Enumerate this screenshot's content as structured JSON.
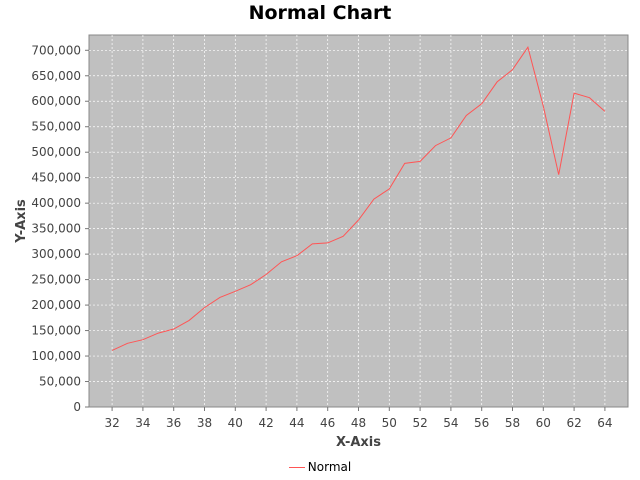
{
  "chart_data": {
    "type": "line",
    "title": "Normal Chart",
    "xlabel": "X-Axis",
    "ylabel": "Y-Axis",
    "xlim": [
      30.5,
      65.5
    ],
    "ylim": [
      0,
      730000
    ],
    "x_ticks": [
      32,
      34,
      36,
      38,
      40,
      42,
      44,
      46,
      48,
      50,
      52,
      54,
      56,
      58,
      60,
      62,
      64
    ],
    "y_ticks": [
      0,
      50000,
      100000,
      150000,
      200000,
      250000,
      300000,
      350000,
      400000,
      450000,
      500000,
      550000,
      600000,
      650000,
      700000
    ],
    "y_tick_labels": [
      "0",
      "50,000",
      "100,000",
      "150,000",
      "200,000",
      "250,000",
      "300,000",
      "350,000",
      "400,000",
      "450,000",
      "500,000",
      "550,000",
      "600,000",
      "650,000",
      "700,000"
    ],
    "grid": true,
    "legend_position": "bottom",
    "plot_background": "#c0c0c0",
    "series": [
      {
        "name": "Normal",
        "color": "#ff5555",
        "x": [
          32,
          33,
          34,
          35,
          36,
          37,
          38,
          39,
          40,
          41,
          42,
          43,
          44,
          45,
          46,
          47,
          48,
          49,
          50,
          51,
          52,
          53,
          54,
          55,
          56,
          57,
          58,
          59,
          60,
          61,
          62,
          63,
          64
        ],
        "y": [
          111000,
          125000,
          132000,
          145000,
          153000,
          170000,
          195000,
          215000,
          227000,
          240000,
          260000,
          285000,
          297000,
          320000,
          322000,
          335000,
          367000,
          408000,
          428000,
          478000,
          482000,
          513000,
          528000,
          572000,
          595000,
          638000,
          662000,
          706000,
          590000,
          456000,
          616000,
          607000,
          580000
        ]
      }
    ]
  }
}
